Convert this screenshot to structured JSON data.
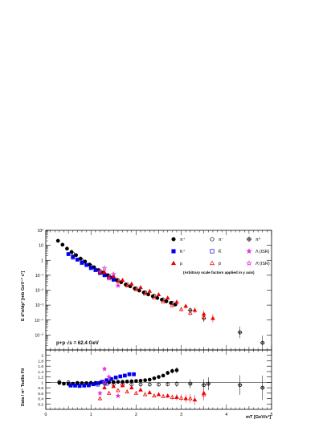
{
  "chart_data": [
    {
      "type": "scatter",
      "panel": "upper",
      "ylabel": "E d³σ/dp³ [mb GeV⁻² c³]",
      "xlim": [
        0,
        5
      ],
      "ylim": [
        1e-06,
        100
      ],
      "yscale": "log",
      "y_ticks": [
        {
          "v": 100,
          "label": "10²"
        },
        {
          "v": 10,
          "label": "10"
        },
        {
          "v": 1,
          "label": "1"
        },
        {
          "v": 0.1,
          "label": "10⁻¹"
        },
        {
          "v": 0.01,
          "label": "10⁻²"
        },
        {
          "v": 0.001,
          "label": "10⁻³"
        },
        {
          "v": 0.0001,
          "label": "10⁻⁴"
        },
        {
          "v": 1e-05,
          "label": "10⁻⁵"
        }
      ],
      "legend": [
        {
          "label": "π⁺",
          "marker": "circle",
          "filled": true,
          "color": "#000000"
        },
        {
          "label": "π⁻",
          "marker": "circle",
          "filled": false,
          "color": "#000000"
        },
        {
          "label": "π⁰",
          "marker": "crosscircle",
          "filled": false,
          "color": "#000000"
        },
        {
          "label": "K⁺",
          "marker": "square",
          "filled": true,
          "color": "#0000ee"
        },
        {
          "label": "K̄",
          "marker": "square",
          "filled": false,
          "color": "#0000ee"
        },
        {
          "label": "Λ (ISR)",
          "marker": "star",
          "filled": true,
          "color": "#dd33dd"
        },
        {
          "label": "p",
          "marker": "triangle",
          "filled": true,
          "color": "#ee0000"
        },
        {
          "label": "p̄",
          "marker": "triangle",
          "filled": false,
          "color": "#ee0000"
        },
        {
          "label": "Λ̄ (ISR)",
          "marker": "star",
          "filled": false,
          "color": "#dd33dd"
        }
      ],
      "note": "(Arbitrary scale factors applied in y axis)",
      "annotation": "p+p √s = 62.4 GeV",
      "series": [
        {
          "legend_index": 0,
          "x": [
            0.27,
            0.37,
            0.47,
            0.57,
            0.67,
            0.77,
            0.87,
            0.97,
            1.07,
            1.17,
            1.27,
            1.37,
            1.47,
            1.57,
            1.67,
            1.77,
            1.87,
            1.97,
            2.07,
            2.17,
            2.27,
            2.37,
            2.47,
            2.57,
            2.67,
            2.77,
            2.87
          ],
          "y": [
            20,
            11,
            6,
            3.6,
            2.2,
            1.3,
            0.82,
            0.52,
            0.34,
            0.22,
            0.15,
            0.1,
            0.069,
            0.048,
            0.034,
            0.024,
            0.018,
            0.013,
            0.0094,
            0.007,
            0.0052,
            0.0039,
            0.003,
            0.0023,
            0.0018,
            0.0014,
            0.0011
          ]
        },
        {
          "legend_index": 1,
          "x": [
            0.6,
            0.8,
            1.0,
            1.2,
            1.4,
            1.6,
            1.8,
            2.0,
            2.2,
            2.4,
            2.6,
            2.8
          ],
          "y": [
            2.8,
            1.0,
            0.42,
            0.19,
            0.092,
            0.046,
            0.024,
            0.013,
            0.0072,
            0.0042,
            0.0024,
            0.0014
          ]
        },
        {
          "legend_index": 2,
          "x": [
            3.2,
            3.5,
            4.3,
            4.8
          ],
          "y": [
            0.00045,
            0.00013,
            1.5e-05,
            3e-06
          ]
        },
        {
          "legend_index": 3,
          "x": [
            0.5,
            0.6,
            0.7,
            0.8,
            0.9,
            1.0,
            1.1,
            1.2,
            1.3,
            1.4,
            1.5
          ],
          "y": [
            2.6,
            1.7,
            1.1,
            0.72,
            0.48,
            0.32,
            0.22,
            0.15,
            0.1,
            0.07,
            0.05
          ]
        },
        {
          "legend_index": 4,
          "x": [
            0.6,
            0.8,
            1.0,
            1.2,
            1.4
          ],
          "y": [
            1.5,
            0.65,
            0.3,
            0.14,
            0.068
          ]
        },
        {
          "legend_index": 5,
          "x": [
            1.2,
            1.4,
            1.6
          ],
          "y": [
            0.18,
            0.06,
            0.02
          ]
        },
        {
          "legend_index": 6,
          "x": [
            1.3,
            1.5,
            1.7,
            1.9,
            2.1,
            2.3,
            2.5,
            2.7,
            2.9,
            3.1,
            3.3,
            3.5,
            3.7
          ],
          "y": [
            0.16,
            0.085,
            0.046,
            0.026,
            0.015,
            0.0085,
            0.005,
            0.003,
            0.0016,
            0.00085,
            0.00045,
            0.00025,
            0.00013
          ]
        },
        {
          "legend_index": 7,
          "x": [
            1.2,
            1.4,
            1.6,
            1.8,
            2.0,
            2.2,
            2.4,
            2.6,
            2.8,
            3.0,
            3.2,
            3.5
          ],
          "y": [
            0.15,
            0.075,
            0.037,
            0.02,
            0.011,
            0.0058,
            0.0031,
            0.0017,
            0.00095,
            0.00052,
            0.0003,
            0.00016
          ]
        },
        {
          "legend_index": 8,
          "x": [
            1.3,
            1.5
          ],
          "y": [
            0.3,
            0.12
          ]
        }
      ]
    },
    {
      "type": "scatter",
      "panel": "lower",
      "ylabel": "Data / π⁺ Tsallis Fit",
      "xlabel": "mT [GeV/c²]",
      "xlim": [
        0,
        5
      ],
      "ylim": [
        0,
        2.2
      ],
      "reference_line": 1.0,
      "x_ticks": [
        0,
        1,
        2,
        3,
        4,
        5
      ],
      "y_ticks": [
        {
          "v": 0.2,
          "label": "0.2"
        },
        {
          "v": 0.4,
          "label": "0.4"
        },
        {
          "v": 0.6,
          "label": "0.6"
        },
        {
          "v": 0.8,
          "label": "0.8"
        },
        {
          "v": 1.0,
          "label": "1"
        },
        {
          "v": 1.2,
          "label": "1.2"
        },
        {
          "v": 1.4,
          "label": "1.4"
        },
        {
          "v": 1.6,
          "label": "1.6"
        },
        {
          "v": 1.8,
          "label": "1.8"
        },
        {
          "v": 2.0,
          "label": "2"
        }
      ],
      "series": [
        {
          "legend_index": 0,
          "x": [
            0.3,
            0.4,
            0.5,
            0.6,
            0.7,
            0.8,
            0.9,
            1.0,
            1.1,
            1.2,
            1.3,
            1.4,
            1.5,
            1.6,
            1.7,
            1.8,
            1.9,
            2.0,
            2.1,
            2.2,
            2.3,
            2.4,
            2.5,
            2.6,
            2.7,
            2.8,
            2.9
          ],
          "y": [
            0.98,
            0.95,
            0.94,
            0.95,
            0.96,
            0.97,
            0.97,
            0.98,
            0.98,
            0.99,
            1.0,
            1.0,
            1.01,
            1.02,
            1.02,
            1.03,
            1.04,
            1.05,
            1.06,
            1.08,
            1.1,
            1.15,
            1.2,
            1.25,
            1.35,
            1.42,
            1.45
          ]
        },
        {
          "legend_index": 1,
          "x": [
            0.3,
            0.5,
            0.7,
            0.9,
            1.1,
            1.3,
            1.5,
            1.7,
            1.9,
            2.1,
            2.3,
            2.5,
            2.7,
            2.9
          ],
          "y": [
            1.02,
            1.0,
            0.98,
            0.97,
            0.96,
            0.95,
            0.93,
            0.92,
            0.92,
            0.92,
            0.92,
            0.92,
            0.93,
            0.94
          ]
        },
        {
          "legend_index": 2,
          "x": [
            3.2,
            3.5,
            3.6,
            4.3,
            4.8
          ],
          "y": [
            0.95,
            0.9,
            0.95,
            0.9,
            0.8
          ]
        },
        {
          "legend_index": 3,
          "x": [
            0.55,
            0.65,
            0.75,
            0.85,
            0.95,
            1.05,
            1.15,
            1.25,
            1.35,
            1.45,
            1.55,
            1.65,
            1.75,
            1.85,
            1.95
          ],
          "y": [
            0.9,
            0.88,
            0.87,
            0.88,
            0.9,
            0.93,
            0.97,
            1.02,
            1.08,
            1.12,
            1.18,
            1.22,
            1.25,
            1.3,
            1.3
          ]
        },
        {
          "legend_index": 4,
          "x": [
            0.55,
            0.75,
            0.95,
            1.15,
            1.35
          ],
          "y": [
            0.88,
            0.87,
            0.89,
            0.92,
            0.95
          ]
        },
        {
          "legend_index": 5,
          "x": [
            1.2,
            1.3,
            1.4,
            1.6
          ],
          "y": [
            0.6,
            1.5,
            1.2,
            0.5
          ]
        },
        {
          "legend_index": 6,
          "x": [
            1.3,
            1.5,
            1.7,
            1.9,
            2.1,
            2.3,
            2.5,
            2.7,
            2.9,
            3.1,
            3.3,
            3.5
          ],
          "y": [
            0.8,
            0.85,
            0.88,
            0.8,
            0.72,
            0.62,
            0.55,
            0.5,
            0.45,
            0.4,
            0.35,
            0.6
          ]
        },
        {
          "legend_index": 7,
          "x": [
            1.2,
            1.4,
            1.6,
            1.8,
            2.0,
            2.2,
            2.4,
            2.6,
            2.8,
            3.0,
            3.2,
            3.5
          ],
          "y": [
            0.4,
            0.6,
            0.7,
            0.65,
            0.6,
            0.55,
            0.5,
            0.48,
            0.45,
            0.42,
            0.4,
            0.55
          ]
        },
        {
          "legend_index": 8,
          "x": [
            1.3
          ],
          "y": [
            1.0
          ]
        }
      ]
    }
  ]
}
